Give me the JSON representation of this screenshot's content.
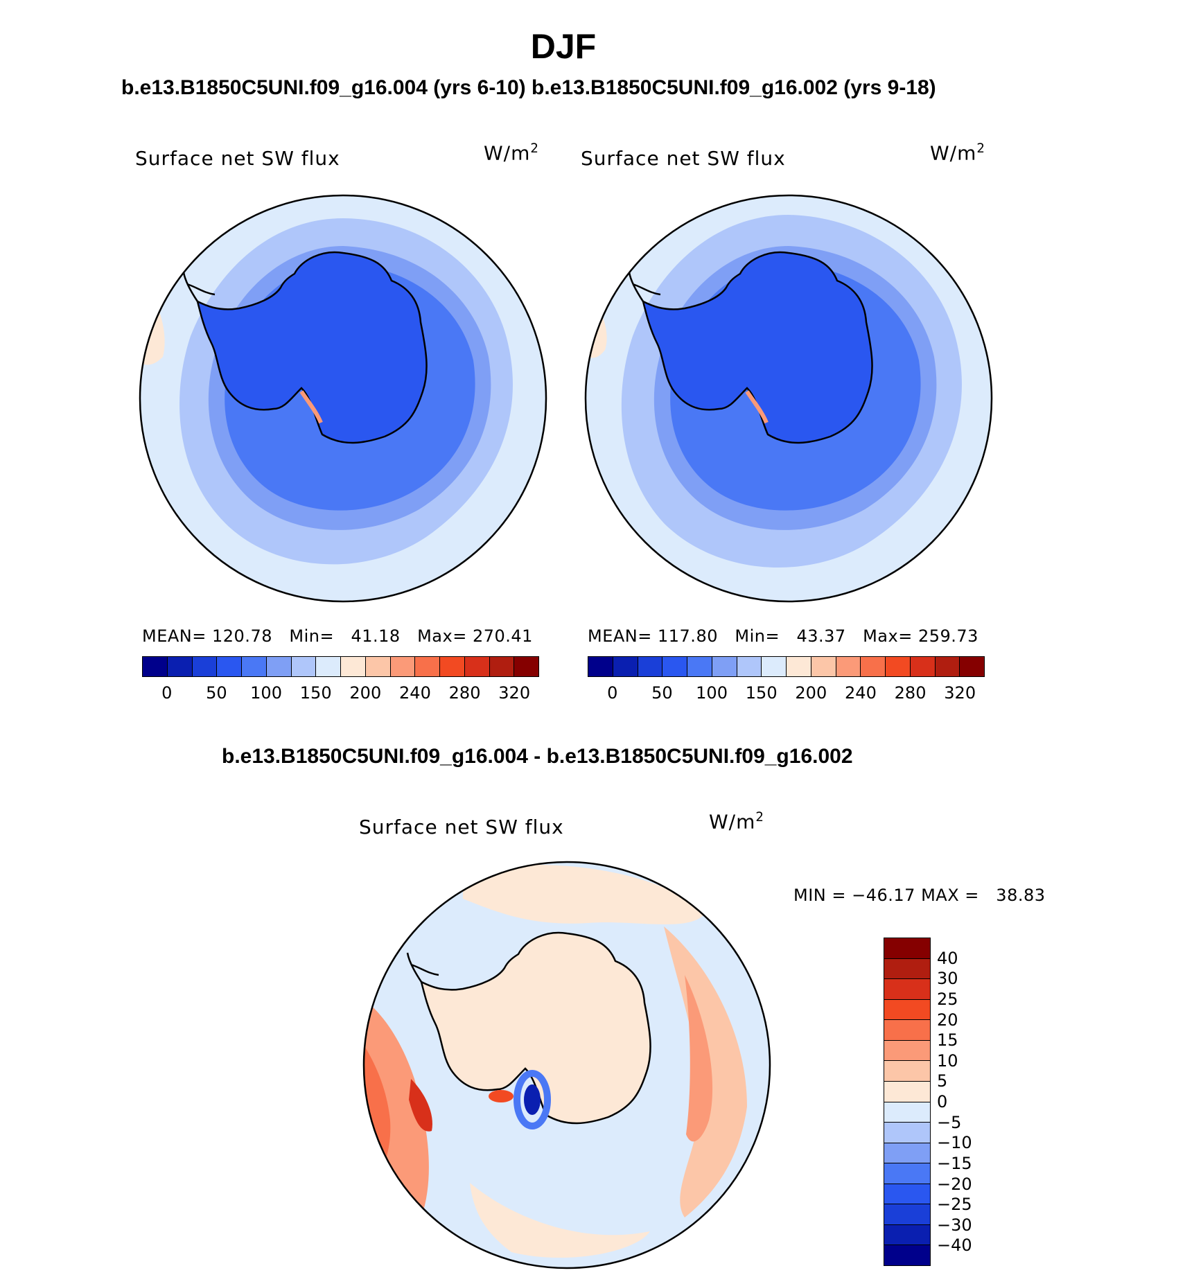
{
  "season": "DJF",
  "top_title": "b.e13.B1850C5UNI.f09_g16.004 (yrs 6-10) b.e13.B1850C5UNI.f09_g16.002 (yrs 9-18)",
  "diff_title": "b.e13.B1850C5UNI.f09_g16.004 - b.e13.B1850C5UNI.f09_g16.002",
  "panels": [
    {
      "variable": "Surface net SW flux",
      "units": "W/m",
      "units_exp": "2",
      "stats": {
        "mean_label": "MEAN=",
        "mean": "120.78",
        "min_label": "Min=",
        "min": "41.18",
        "max_label": "Max=",
        "max": "270.41"
      }
    },
    {
      "variable": "Surface net SW flux",
      "units": "W/m",
      "units_exp": "2",
      "stats": {
        "mean_label": "MEAN=",
        "mean": "117.80",
        "min_label": "Min=",
        "min": "43.37",
        "max_label": "Max=",
        "max": "259.73"
      }
    }
  ],
  "diff_panel": {
    "variable": "Surface net SW flux",
    "units": "W/m",
    "units_exp": "2",
    "min_label": "MIN =",
    "min": "−46.17",
    "max_label": "MAX =",
    "max": "38.83"
  },
  "abs_colorbar": {
    "labels": [
      "0",
      "50",
      "100",
      "150",
      "200",
      "240",
      "280",
      "320"
    ],
    "colors": [
      "#00008b",
      "#0a1fb0",
      "#1a3fd8",
      "#2a57f0",
      "#4a78f5",
      "#7f9ff5",
      "#afc6fa",
      "#dcebfc",
      "#fde8d6",
      "#fcc6a8",
      "#fb9a78",
      "#f8704a",
      "#f24a22",
      "#d8301a",
      "#b01e10",
      "#850000"
    ]
  },
  "diff_colorbar": {
    "labels": [
      "40",
      "30",
      "25",
      "20",
      "15",
      "10",
      "5",
      "0",
      "−5",
      "−10",
      "−15",
      "−20",
      "−25",
      "−30",
      "−40"
    ],
    "colors": [
      "#850000",
      "#b01e10",
      "#d8301a",
      "#f24a22",
      "#f8704a",
      "#fb9a78",
      "#fcc6a8",
      "#fde8d6",
      "#dcebfc",
      "#afc6fa",
      "#7f9ff5",
      "#4a78f5",
      "#2a57f0",
      "#1a3fd8",
      "#0a1fb0",
      "#00008b"
    ]
  },
  "map_colors": {
    "ocean_light": "#dcebfc",
    "band1": "#afc6fa",
    "band2": "#7f9ff5",
    "band3": "#4a78f5",
    "land": "#2a57f0",
    "warm1": "#fde8d6",
    "warm2": "#fcc6a8",
    "warm3": "#fb9a78",
    "warm4": "#f8704a",
    "warm5": "#d8301a",
    "cool_deep": "#0a1fb0"
  }
}
